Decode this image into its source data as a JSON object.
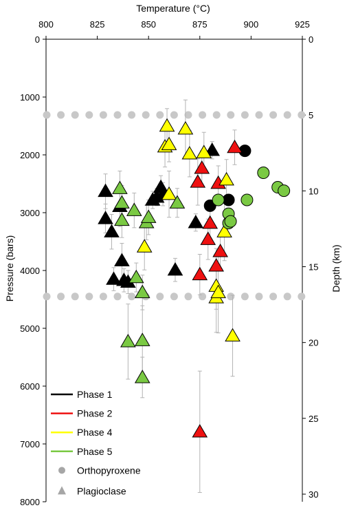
{
  "chart_data": {
    "type": "scatter",
    "title": "",
    "xlabel": "Temperature (°C)",
    "ylabel": "Pressure (bars)",
    "y2label": "Depth (km)",
    "x_axis_position": "top",
    "xlim": [
      800,
      925
    ],
    "ylim": [
      0,
      8000
    ],
    "y_inverted": true,
    "y2lim": [
      0,
      30.5
    ],
    "x_ticks": [
      800,
      825,
      850,
      875,
      900,
      925
    ],
    "y_ticks": [
      0,
      1000,
      2000,
      3000,
      4000,
      5000,
      6000,
      7000,
      8000
    ],
    "y2_ticks": [
      0,
      5,
      10,
      15,
      20,
      25,
      30
    ],
    "reference_lines": [
      {
        "style": "dotted-grey",
        "pressure": 1310,
        "depth_km": 5
      },
      {
        "style": "dotted-grey",
        "pressure": 4450,
        "depth_km": 17
      }
    ],
    "legend": {
      "placement": "bottom-left",
      "entries": [
        {
          "label": "Phase 1",
          "kind": "line",
          "color": "#000000"
        },
        {
          "label": "Phase 2",
          "kind": "line",
          "color": "#ee1111"
        },
        {
          "label": "Phase 4",
          "kind": "line",
          "color": "#ffff00"
        },
        {
          "label": "Phase 5",
          "kind": "line",
          "color": "#7ac943"
        },
        {
          "label": "Orthopyroxene",
          "kind": "circle",
          "color": "#a6a6a6"
        },
        {
          "label": "Plagioclase",
          "kind": "triangle",
          "color": "#a6a6a6"
        }
      ]
    },
    "colors": {
      "Phase 1": "#000000",
      "Phase 2": "#ee1111",
      "Phase 4": "#ffff00",
      "Phase 5": "#7ac943"
    },
    "series": [
      {
        "name": "Phase 1",
        "marker": "triangle",
        "points": [
          {
            "x": 829,
            "y": 2630,
            "err": 300
          },
          {
            "x": 829,
            "y": 3100,
            "err": 250
          },
          {
            "x": 832,
            "y": 3330,
            "err": 300
          },
          {
            "x": 833,
            "y": 4150,
            "err": 200
          },
          {
            "x": 836,
            "y": 2890,
            "err": 350
          },
          {
            "x": 837,
            "y": 3830,
            "err": 300
          },
          {
            "x": 838,
            "y": 4170,
            "err": 200
          },
          {
            "x": 840,
            "y": 4200,
            "err": 200
          },
          {
            "x": 852,
            "y": 2780,
            "err": 150
          },
          {
            "x": 854,
            "y": 2730,
            "err": 150
          },
          {
            "x": 856,
            "y": 2560,
            "err": 200
          },
          {
            "x": 857,
            "y": 2680,
            "err": 200
          },
          {
            "x": 863,
            "y": 3990,
            "err": 200
          },
          {
            "x": 873,
            "y": 3170,
            "err": 150
          },
          {
            "x": 881,
            "y": 1920,
            "err": 150
          }
        ]
      },
      {
        "name": "Phase 1",
        "marker": "circle",
        "points": [
          {
            "x": 880,
            "y": 2880
          },
          {
            "x": 889,
            "y": 2780
          },
          {
            "x": 897,
            "y": 1930
          }
        ]
      },
      {
        "name": "Phase 2",
        "marker": "triangle",
        "points": [
          {
            "x": 874,
            "y": 2470,
            "err": 400
          },
          {
            "x": 876,
            "y": 2230,
            "err": 300
          },
          {
            "x": 875,
            "y": 4070,
            "err": 350
          },
          {
            "x": 875,
            "y": 6790,
            "err": 1050
          },
          {
            "x": 879,
            "y": 3460,
            "err": 350
          },
          {
            "x": 880,
            "y": 3180,
            "err": 300
          },
          {
            "x": 883,
            "y": 3920,
            "err": 300
          },
          {
            "x": 884,
            "y": 2490,
            "err": 300
          },
          {
            "x": 885,
            "y": 3670,
            "err": 300
          },
          {
            "x": 892,
            "y": 1870,
            "err": 300
          }
        ]
      },
      {
        "name": "Phase 4",
        "marker": "triangle",
        "points": [
          {
            "x": 858,
            "y": 1860,
            "err": 350
          },
          {
            "x": 859,
            "y": 1500,
            "err": 300
          },
          {
            "x": 860,
            "y": 1820,
            "err": 300
          },
          {
            "x": 868,
            "y": 1550,
            "err": 500
          },
          {
            "x": 870,
            "y": 1980,
            "err": 400
          },
          {
            "x": 848,
            "y": 3590,
            "err": 400
          },
          {
            "x": 860,
            "y": 2680,
            "err": 400
          },
          {
            "x": 877,
            "y": 1960,
            "err": 350
          },
          {
            "x": 883,
            "y": 4270,
            "err": 400
          },
          {
            "x": 883,
            "y": 4470,
            "err": 600
          },
          {
            "x": 884,
            "y": 4380,
            "err": 700
          },
          {
            "x": 887,
            "y": 3330,
            "err": 500
          },
          {
            "x": 888,
            "y": 2430,
            "err": 350
          },
          {
            "x": 891,
            "y": 5130,
            "err": 700
          }
        ]
      },
      {
        "name": "Phase 5",
        "marker": "triangle",
        "points": [
          {
            "x": 836,
            "y": 2580,
            "err": 300
          },
          {
            "x": 837,
            "y": 2830,
            "err": 300
          },
          {
            "x": 837,
            "y": 3130,
            "err": 300
          },
          {
            "x": 843,
            "y": 2960,
            "err": 300
          },
          {
            "x": 844,
            "y": 4120,
            "err": 250
          },
          {
            "x": 849,
            "y": 3170,
            "err": 300
          },
          {
            "x": 850,
            "y": 3080,
            "err": 300
          },
          {
            "x": 847,
            "y": 4380,
            "err": 300
          },
          {
            "x": 840,
            "y": 5230,
            "err": 650
          },
          {
            "x": 847,
            "y": 5210,
            "err": 600
          },
          {
            "x": 847,
            "y": 5850,
            "err": 350
          },
          {
            "x": 864,
            "y": 2830,
            "err": 250
          }
        ]
      },
      {
        "name": "Phase 5",
        "marker": "circle",
        "points": [
          {
            "x": 884,
            "y": 2780
          },
          {
            "x": 889,
            "y": 3020
          },
          {
            "x": 889,
            "y": 3180
          },
          {
            "x": 890,
            "y": 3150
          },
          {
            "x": 898,
            "y": 2780
          },
          {
            "x": 906,
            "y": 2310
          },
          {
            "x": 913,
            "y": 2560
          },
          {
            "x": 916,
            "y": 2620
          }
        ]
      }
    ]
  }
}
